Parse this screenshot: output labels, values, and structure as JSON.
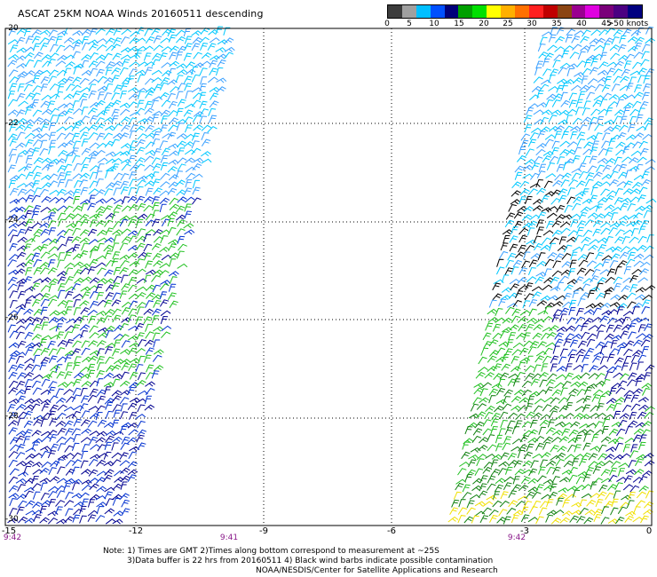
{
  "header": {
    "title": "ASCAT 25KM NOAA Winds 20160511 descending"
  },
  "colorbar": {
    "labels": [
      "0",
      "5",
      "10",
      "15",
      "20",
      "25",
      "30",
      "35",
      "40",
      "45",
      ">50 knots"
    ],
    "colors": [
      "#3c3c3c",
      "#a0a0a0",
      "#00bfff",
      "#0050ff",
      "#00007a",
      "#00a000",
      "#00e000",
      "#ffff00",
      "#ffb000",
      "#ff7000",
      "#ff2020",
      "#c00000",
      "#8b4513",
      "#9a0090",
      "#e000e0",
      "#7a007a",
      "#4b0082",
      "#000080"
    ]
  },
  "axes": {
    "lat_labels": [
      "-20",
      "-22",
      "-24",
      "-26",
      "-28",
      "-30"
    ],
    "lon_labels": [
      "-15",
      "-12",
      "-9",
      "-6",
      "-3",
      "0"
    ],
    "lon_range": [
      -15,
      0
    ],
    "lat_range": [
      -30,
      -20
    ]
  },
  "pass_times": [
    "9:42",
    "9:41",
    "9:42"
  ],
  "notes": {
    "line1": "Note: 1) Times are GMT 2)Times along bottom correspond to measurement at ~25S",
    "line2": "3)Data buffer is 22 hrs from 20160511 4) Black wind barbs indicate possible contamination",
    "line3": "NOAA/NESDIS/Center for Satellite Applications and Research"
  },
  "barb_colors": {
    "cyan": "#00c8ff",
    "lightblue": "#3aa0ff",
    "blue": "#0030d0",
    "navy": "#000090",
    "green": "#20c020",
    "darkgreen": "#108010",
    "yellow": "#f0e000",
    "black": "#000000"
  }
}
